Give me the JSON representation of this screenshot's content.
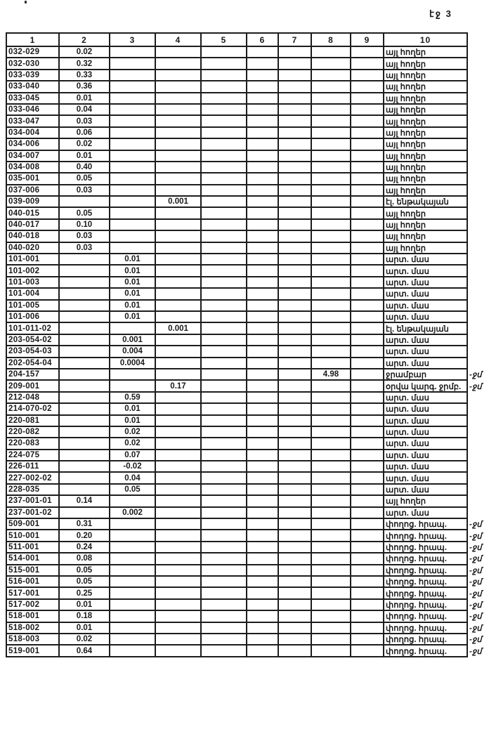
{
  "page_label": "էջ 3",
  "colors": {
    "ink": "#1d1d1d",
    "paper": "#ffffff",
    "margin_note_ink": "#6d6d6d"
  },
  "table": {
    "columns": [
      "1",
      "2",
      "3",
      "4",
      "5",
      "6",
      "7",
      "8",
      "9",
      "10"
    ],
    "rows": [
      {
        "cells": [
          "032-029",
          "0.02",
          "",
          "",
          "",
          "",
          "",
          "",
          "",
          "այլ հողեր"
        ],
        "note": ""
      },
      {
        "cells": [
          "032-030",
          "0.32",
          "",
          "",
          "",
          "",
          "",
          "",
          "",
          "այլ հողեր"
        ],
        "note": ""
      },
      {
        "cells": [
          "033-039",
          "0.33",
          "",
          "",
          "",
          "",
          "",
          "",
          "",
          "այլ հողեր"
        ],
        "note": ""
      },
      {
        "cells": [
          "033-040",
          "0.36",
          "",
          "",
          "",
          "",
          "",
          "",
          "",
          "այլ հողեր"
        ],
        "note": ""
      },
      {
        "cells": [
          "033-045",
          "0.01",
          "",
          "",
          "",
          "",
          "",
          "",
          "",
          "այլ հողեր"
        ],
        "note": ""
      },
      {
        "cells": [
          "033-046",
          "0.04",
          "",
          "",
          "",
          "",
          "",
          "",
          "",
          "այլ հողեր"
        ],
        "note": ""
      },
      {
        "cells": [
          "033-047",
          "0.03",
          "",
          "",
          "",
          "",
          "",
          "",
          "",
          "այլ հողեր"
        ],
        "note": ""
      },
      {
        "cells": [
          "034-004",
          "0.06",
          "",
          "",
          "",
          "",
          "",
          "",
          "",
          "այլ հողեր"
        ],
        "note": ""
      },
      {
        "cells": [
          "034-006",
          "0.02",
          "",
          "",
          "",
          "",
          "",
          "",
          "",
          "այլ հողեր"
        ],
        "note": ""
      },
      {
        "cells": [
          "034-007",
          "0.01",
          "",
          "",
          "",
          "",
          "",
          "",
          "",
          "այլ հողեր"
        ],
        "note": ""
      },
      {
        "cells": [
          "034-008",
          "0.40",
          "",
          "",
          "",
          "",
          "",
          "",
          "",
          "այլ հողեր"
        ],
        "note": ""
      },
      {
        "cells": [
          "035-001",
          "0.05",
          "",
          "",
          "",
          "",
          "",
          "",
          "",
          "այլ հողեր"
        ],
        "note": ""
      },
      {
        "cells": [
          "037-006",
          "0.03",
          "",
          "",
          "",
          "",
          "",
          "",
          "",
          "այլ հողեր"
        ],
        "note": ""
      },
      {
        "cells": [
          "039-009",
          "",
          "",
          "0.001",
          "",
          "",
          "",
          "",
          "",
          "էլ. ենթակայան"
        ],
        "note": ""
      },
      {
        "cells": [
          "040-015",
          "0.05",
          "",
          "",
          "",
          "",
          "",
          "",
          "",
          "այլ հողեր"
        ],
        "note": ""
      },
      {
        "cells": [
          "040-017",
          "0.10",
          "",
          "",
          "",
          "",
          "",
          "",
          "",
          "այլ հողեր"
        ],
        "note": ""
      },
      {
        "cells": [
          "040-018",
          "0.03",
          "",
          "",
          "",
          "",
          "",
          "",
          "",
          "այլ հողեր"
        ],
        "note": ""
      },
      {
        "cells": [
          "040-020",
          "0.03",
          "",
          "",
          "",
          "",
          "",
          "",
          "",
          "այլ հողեր"
        ],
        "note": ""
      },
      {
        "cells": [
          "101-001",
          "",
          "0.01",
          "",
          "",
          "",
          "",
          "",
          "",
          "արտ. մաս"
        ],
        "note": ""
      },
      {
        "cells": [
          "101-002",
          "",
          "0.01",
          "",
          "",
          "",
          "",
          "",
          "",
          "արտ. մաս"
        ],
        "note": ""
      },
      {
        "cells": [
          "101-003",
          "",
          "0.01",
          "",
          "",
          "",
          "",
          "",
          "",
          "արտ. մաս"
        ],
        "note": ""
      },
      {
        "cells": [
          "101-004",
          "",
          "0.01",
          "",
          "",
          "",
          "",
          "",
          "",
          "արտ. մաս"
        ],
        "note": ""
      },
      {
        "cells": [
          "101-005",
          "",
          "0.01",
          "",
          "",
          "",
          "",
          "",
          "",
          "արտ. մաս"
        ],
        "note": ""
      },
      {
        "cells": [
          "101-006",
          "",
          "0.01",
          "",
          "",
          "",
          "",
          "",
          "",
          "արտ. մաս"
        ],
        "note": ""
      },
      {
        "cells": [
          "101-011-02",
          "",
          "",
          "0.001",
          "",
          "",
          "",
          "",
          "",
          "էլ. ենթակայան"
        ],
        "note": ""
      },
      {
        "cells": [
          "203-054-02",
          "",
          "0.001",
          "",
          "",
          "",
          "",
          "",
          "",
          "արտ. մաս"
        ],
        "note": ""
      },
      {
        "cells": [
          "203-054-03",
          "",
          "0.004",
          "",
          "",
          "",
          "",
          "",
          "",
          "արտ. մաս"
        ],
        "note": ""
      },
      {
        "cells": [
          "202-054-04",
          "",
          "0.0004",
          "",
          "",
          "",
          "",
          "",
          "",
          "արտ. մաս"
        ],
        "note": ""
      },
      {
        "cells": [
          "204-157",
          "",
          "",
          "",
          "",
          "",
          "",
          "4.98",
          "",
          "ջրամբար"
        ],
        "note": "-ջմ"
      },
      {
        "cells": [
          "209-001",
          "",
          "",
          "0.17",
          "",
          "",
          "",
          "",
          "",
          "օրվա կարգ. ջրմբ."
        ],
        "note": "-ջմ"
      },
      {
        "cells": [
          "212-048",
          "",
          "0.59",
          "",
          "",
          "",
          "",
          "",
          "",
          "արտ. մաս"
        ],
        "note": ""
      },
      {
        "cells": [
          "214-070-02",
          "",
          "0.01",
          "",
          "",
          "",
          "",
          "",
          "",
          "արտ. մաս"
        ],
        "note": ""
      },
      {
        "cells": [
          "220-081",
          "",
          "0.01",
          "",
          "",
          "",
          "",
          "",
          "",
          "արտ. մաս"
        ],
        "note": ""
      },
      {
        "cells": [
          "220-082",
          "",
          "0.02",
          "",
          "",
          "",
          "",
          "",
          "",
          "արտ. մաս"
        ],
        "note": ""
      },
      {
        "cells": [
          "220-083",
          "",
          "0.02",
          "",
          "",
          "",
          "",
          "",
          "",
          "արտ. մաս"
        ],
        "note": ""
      },
      {
        "cells": [
          "224-075",
          "",
          "0.07",
          "",
          "",
          "",
          "",
          "",
          "",
          "արտ. մաս"
        ],
        "note": ""
      },
      {
        "cells": [
          "226-011",
          "",
          "-0.02",
          "",
          "",
          "",
          "",
          "",
          "",
          "արտ. մաս"
        ],
        "note": ""
      },
      {
        "cells": [
          "227-002-02",
          "",
          "0.04",
          "",
          "",
          "",
          "",
          "",
          "",
          "արտ. մաս"
        ],
        "note": ""
      },
      {
        "cells": [
          "228-035",
          "",
          "0.05",
          "",
          "",
          "",
          "",
          "",
          "",
          "արտ. մաս"
        ],
        "note": ""
      },
      {
        "cells": [
          "237-001-01",
          "0.14",
          "",
          "",
          "",
          "",
          "",
          "",
          "",
          "այլ հողեր"
        ],
        "note": ""
      },
      {
        "cells": [
          "237-001-02",
          "",
          "0.002",
          "",
          "",
          "",
          "",
          "",
          "",
          "արտ. մաս"
        ],
        "note": ""
      },
      {
        "cells": [
          "509-001",
          "0.31",
          "",
          "",
          "",
          "",
          "",
          "",
          "",
          "փողոց. հրապ."
        ],
        "note": "-ջմ"
      },
      {
        "cells": [
          "510-001",
          "0.20",
          "",
          "",
          "",
          "",
          "",
          "",
          "",
          "փողոց. հրապ."
        ],
        "note": "-ջմ"
      },
      {
        "cells": [
          "511-001",
          "0.24",
          "",
          "",
          "",
          "",
          "",
          "",
          "",
          "փողոց. հրապ."
        ],
        "note": "-ջմ"
      },
      {
        "cells": [
          "514-001",
          "0.08",
          "",
          "",
          "",
          "",
          "",
          "",
          "",
          "փողոց. հրապ."
        ],
        "note": "-ջմ"
      },
      {
        "cells": [
          "515-001",
          "0.05",
          "",
          "",
          "",
          "",
          "",
          "",
          "",
          "փողոց. հրապ."
        ],
        "note": "-ջմ"
      },
      {
        "cells": [
          "516-001",
          "0.05",
          "",
          "",
          "",
          "",
          "",
          "",
          "",
          "փողոց. հրապ."
        ],
        "note": "-ջմ"
      },
      {
        "cells": [
          "517-001",
          "0.25",
          "",
          "",
          "",
          "",
          "",
          "",
          "",
          "փողոց. հրապ."
        ],
        "note": "-ջմ"
      },
      {
        "cells": [
          "517-002",
          "0.01",
          "",
          "",
          "",
          "",
          "",
          "",
          "",
          "փողոց. հրապ."
        ],
        "note": "-ջմ"
      },
      {
        "cells": [
          "518-001",
          "0.18",
          "",
          "",
          "",
          "",
          "",
          "",
          "",
          "փողոց. հրապ."
        ],
        "note": "-ջմ"
      },
      {
        "cells": [
          "518-002",
          "0.01",
          "",
          "",
          "",
          "",
          "",
          "",
          "",
          "փողոց. հրապ."
        ],
        "note": "-ջմ"
      },
      {
        "cells": [
          "518-003",
          "0.02",
          "",
          "",
          "",
          "",
          "",
          "",
          "",
          "փողոց. հրապ."
        ],
        "note": "-ջմ"
      },
      {
        "cells": [
          "519-001",
          "0.64",
          "",
          "",
          "",
          "",
          "",
          "",
          "",
          "փողոց. հրապ."
        ],
        "note": "-ջմ"
      }
    ]
  }
}
